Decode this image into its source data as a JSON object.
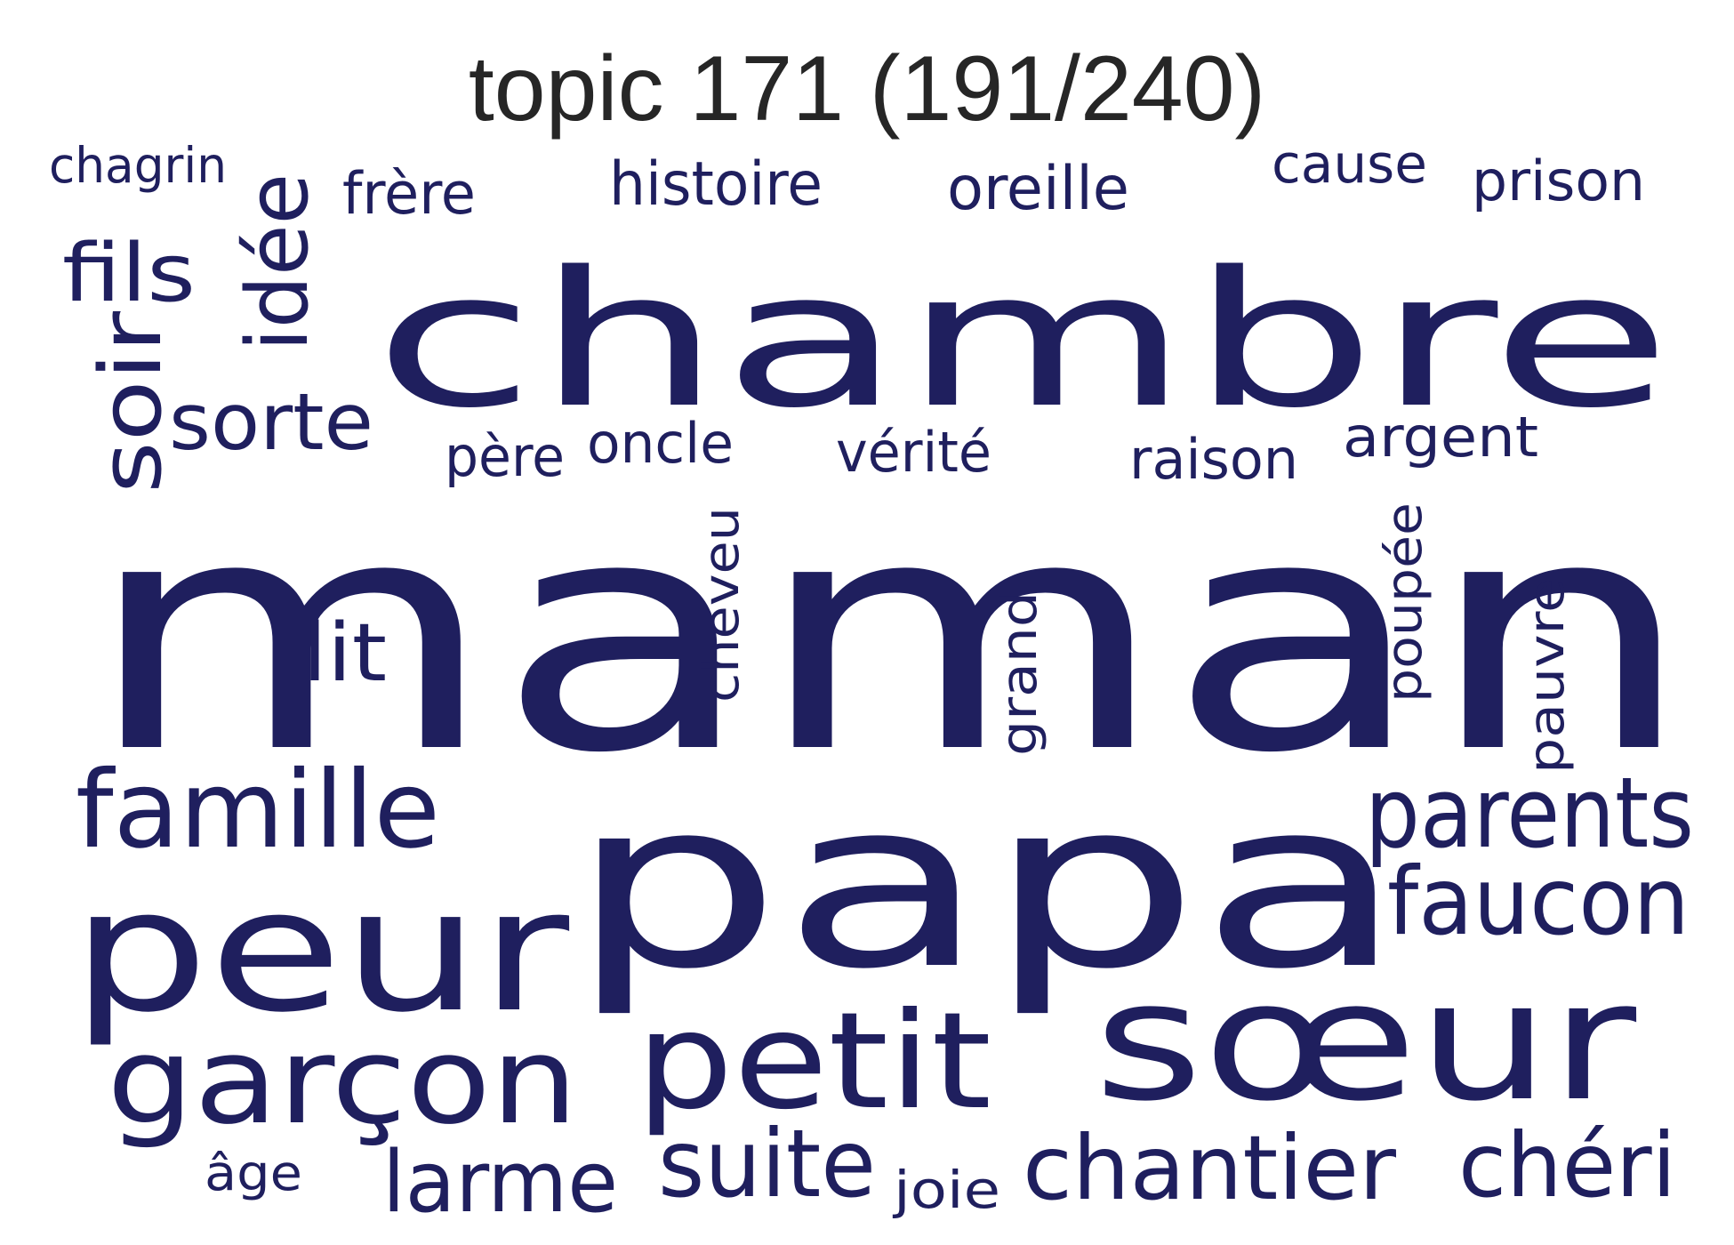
{
  "title": "topic 171 (191/240)",
  "word_color": "#1f1f5e",
  "words": [
    {
      "text": "maman",
      "orientation": "horizontal"
    },
    {
      "text": "papa",
      "orientation": "horizontal"
    },
    {
      "text": "chambre",
      "orientation": "horizontal"
    },
    {
      "text": "peur",
      "orientation": "horizontal"
    },
    {
      "text": "sœur",
      "orientation": "horizontal"
    },
    {
      "text": "petit",
      "orientation": "horizontal"
    },
    {
      "text": "garçon",
      "orientation": "horizontal"
    },
    {
      "text": "famille",
      "orientation": "horizontal"
    },
    {
      "text": "parents",
      "orientation": "horizontal"
    },
    {
      "text": "faucon",
      "orientation": "horizontal"
    },
    {
      "text": "suite",
      "orientation": "horizontal"
    },
    {
      "text": "chantier",
      "orientation": "horizontal"
    },
    {
      "text": "chéri",
      "orientation": "horizontal"
    },
    {
      "text": "larme",
      "orientation": "horizontal"
    },
    {
      "text": "idée",
      "orientation": "vertical"
    },
    {
      "text": "fils",
      "orientation": "horizontal"
    },
    {
      "text": "soir",
      "orientation": "vertical"
    },
    {
      "text": "sorte",
      "orientation": "horizontal"
    },
    {
      "text": "lit",
      "orientation": "horizontal"
    },
    {
      "text": "histoire",
      "orientation": "horizontal"
    },
    {
      "text": "oreille",
      "orientation": "horizontal"
    },
    {
      "text": "frère",
      "orientation": "horizontal"
    },
    {
      "text": "prison",
      "orientation": "horizontal"
    },
    {
      "text": "cause",
      "orientation": "horizontal"
    },
    {
      "text": "chagrin",
      "orientation": "horizontal"
    },
    {
      "text": "père",
      "orientation": "horizontal"
    },
    {
      "text": "oncle",
      "orientation": "horizontal"
    },
    {
      "text": "vérité",
      "orientation": "horizontal"
    },
    {
      "text": "raison",
      "orientation": "horizontal"
    },
    {
      "text": "argent",
      "orientation": "horizontal"
    },
    {
      "text": "cheveu",
      "orientation": "vertical"
    },
    {
      "text": "grand",
      "orientation": "vertical"
    },
    {
      "text": "poupée",
      "orientation": "vertical"
    },
    {
      "text": "pauvre",
      "orientation": "vertical"
    },
    {
      "text": "âge",
      "orientation": "horizontal"
    },
    {
      "text": "joie",
      "orientation": "horizontal"
    }
  ]
}
